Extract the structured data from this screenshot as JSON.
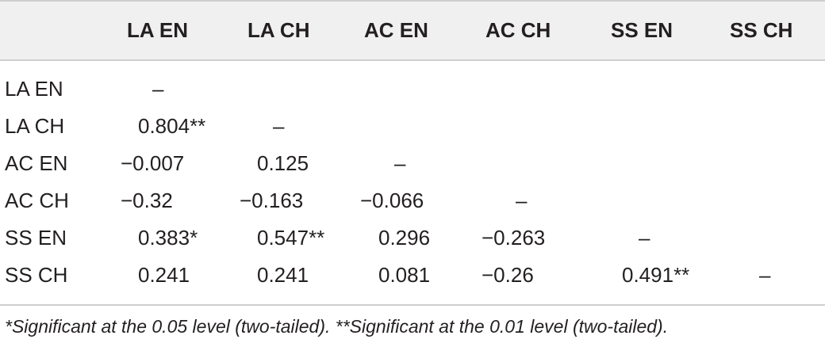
{
  "table": {
    "columns": [
      "",
      "LA EN",
      "LA CH",
      "AC EN",
      "AC CH",
      "SS EN",
      "SS CH"
    ],
    "rows": [
      {
        "label": "LA EN",
        "cells": [
          "–",
          "",
          "",
          "",
          "",
          ""
        ]
      },
      {
        "label": "LA CH",
        "cells": [
          "0.804**",
          "–",
          "",
          "",
          "",
          ""
        ]
      },
      {
        "label": "AC EN",
        "cells": [
          "−0.007",
          "0.125",
          "–",
          "",
          "",
          ""
        ]
      },
      {
        "label": "AC CH",
        "cells": [
          "−0.32",
          "−0.163",
          "−0.066",
          "–",
          "",
          ""
        ]
      },
      {
        "label": "SS EN",
        "cells": [
          "0.383*",
          "0.547**",
          "0.296",
          "−0.263",
          "–",
          ""
        ]
      },
      {
        "label": "SS CH",
        "cells": [
          "0.241",
          "0.241",
          "0.081",
          "−0.26",
          "0.491**",
          "–"
        ]
      }
    ],
    "footnote": "*Significant at the 0.05 level (two-tailed). **Significant at the 0.01 level (two-tailed)."
  }
}
